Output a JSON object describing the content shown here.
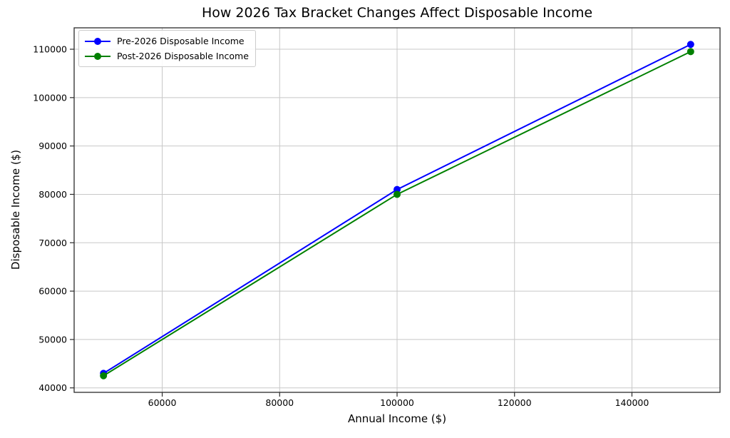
{
  "chart_data": {
    "type": "line",
    "title": "How 2026 Tax Bracket Changes Affect Disposable Income",
    "xlabel": "Annual Income ($)",
    "ylabel": "Disposable Income ($)",
    "x": [
      50000,
      100000,
      150000
    ],
    "series": [
      {
        "name": "Pre-2026 Disposable Income",
        "color": "#0000ff",
        "values": [
          43000,
          81000,
          111000
        ]
      },
      {
        "name": "Post-2026 Disposable Income",
        "color": "#008000",
        "values": [
          42500,
          80000,
          109500
        ]
      }
    ],
    "xticks": [
      60000,
      80000,
      100000,
      120000,
      140000
    ],
    "yticks": [
      40000,
      50000,
      60000,
      70000,
      80000,
      90000,
      100000,
      110000
    ],
    "xlim": [
      45000,
      155000
    ],
    "ylim": [
      39075,
      114425
    ],
    "grid": true,
    "legend_position": "upper left",
    "colors": {
      "grid": "#c8c8c8",
      "spine": "#2b2b2b",
      "tick": "#2b2b2b",
      "background": "#ffffff",
      "legend_border": "#cccccc"
    }
  }
}
